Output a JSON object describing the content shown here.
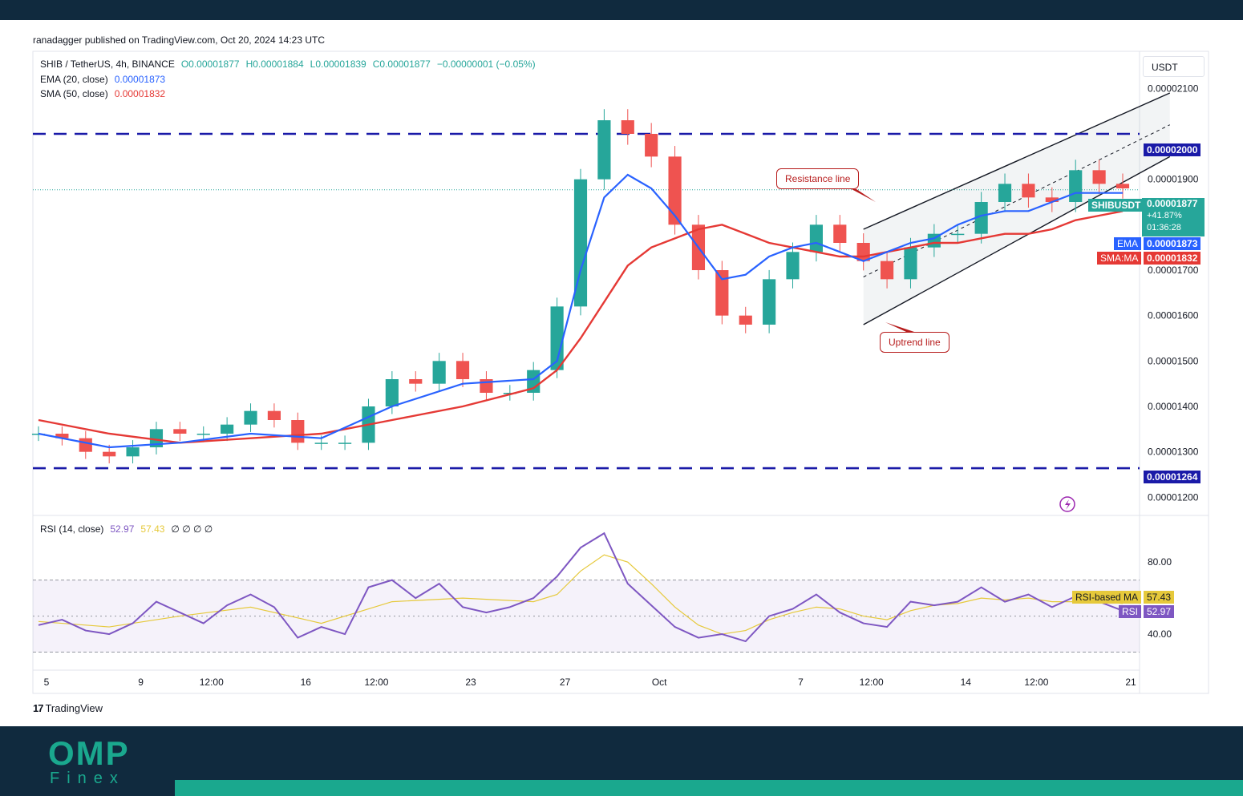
{
  "header": {
    "publisher": "ranadagger published on TradingView.com, Oct 20, 2024 14:23 UTC"
  },
  "legend": {
    "symbol": "SHIB / TetherUS, 4h, BINANCE",
    "open": "O0.00001877",
    "high": "H0.00001884",
    "low": "L0.00001839",
    "close": "C0.00001877",
    "change": "−0.00000001 (−0.05%)",
    "ema_label": "EMA (20, close)",
    "ema_value": "0.00001873",
    "sma_label": "SMA (50, close)",
    "sma_value": "0.00001832"
  },
  "rsi_legend": {
    "label": "RSI (14, close)",
    "rsi_value": "52.97",
    "ma_value": "57.43",
    "extras": "∅ ∅ ∅ ∅"
  },
  "currency_unit": "USDT",
  "price_tags": {
    "resistance": "0.00002000",
    "support": "0.00001264",
    "symbol": "SHIBUSDT",
    "last": "0.00001877",
    "change_pct": "+41.87%",
    "countdown": "01:36:28",
    "ema_tag": "EMA",
    "ema_value": "0.00001873",
    "sma_tag": "SMA:MA",
    "sma_value": "0.00001832",
    "rsi_ma_tag": "RSI-based MA",
    "rsi_ma_value": "57.43",
    "rsi_tag": "RSI",
    "rsi_value": "52.97"
  },
  "annotations": {
    "resistance_line": "Resistance line",
    "uptrend_line": "Uptrend line"
  },
  "footer": {
    "brand_mark": "17",
    "brand": "TradingView",
    "logo_main": "OMP",
    "logo_sub": "Finex"
  },
  "colors": {
    "up": "#26a69a",
    "down": "#ef5350",
    "ema": "#2962ff",
    "sma": "#e53935",
    "rsi": "#7e57c2",
    "rsi_ma": "#e6c93b",
    "levels": "#1a1aa8",
    "brand": "#1aa88e"
  },
  "chart_data": [
    {
      "type": "candlestick",
      "title": "SHIB / TetherUS, 4h, BINANCE",
      "ylim": [
        1.16e-05,
        2.18e-05
      ],
      "y_ticks": [
        "0.00002100",
        "0.00001900",
        "0.00001700",
        "0.00001600",
        "0.00001500",
        "0.00001400",
        "0.00001300",
        "0.00001200"
      ],
      "x_ticks": [
        "5",
        "9",
        "12:00",
        "16",
        "12:00",
        "23",
        "27",
        "Oct",
        "7",
        "12:00",
        "14",
        "12:00",
        "21"
      ],
      "x_positions": [
        0,
        4,
        7,
        11,
        14,
        18,
        22,
        26,
        32,
        35,
        39,
        42,
        46
      ],
      "horizontal_levels": [
        2e-05,
        1.264e-05
      ],
      "channel": {
        "upper": [
          [
            35,
            1.79e-05
          ],
          [
            48,
            2.09e-05
          ]
        ],
        "lower": [
          [
            35,
            1.58e-05
          ],
          [
            48,
            1.95e-05
          ]
        ]
      },
      "series": [
        {
          "name": "SHIBUSDT",
          "type": "candlestick",
          "points": [
            [
              0,
              1.34e-05
            ],
            [
              1,
              1.33e-05
            ],
            [
              2,
              1.3e-05
            ],
            [
              3,
              1.29e-05
            ],
            [
              4,
              1.31e-05
            ],
            [
              5,
              1.35e-05
            ],
            [
              6,
              1.34e-05
            ],
            [
              7,
              1.34e-05
            ],
            [
              8,
              1.36e-05
            ],
            [
              9,
              1.39e-05
            ],
            [
              10,
              1.37e-05
            ],
            [
              11,
              1.32e-05
            ],
            [
              12,
              1.32e-05
            ],
            [
              13,
              1.32e-05
            ],
            [
              14,
              1.4e-05
            ],
            [
              15,
              1.46e-05
            ],
            [
              16,
              1.45e-05
            ],
            [
              17,
              1.5e-05
            ],
            [
              18,
              1.46e-05
            ],
            [
              19,
              1.43e-05
            ],
            [
              20,
              1.43e-05
            ],
            [
              21,
              1.48e-05
            ],
            [
              22,
              1.62e-05
            ],
            [
              23,
              1.9e-05
            ],
            [
              24,
              2.03e-05
            ],
            [
              25,
              2e-05
            ],
            [
              26,
              1.95e-05
            ],
            [
              27,
              1.8e-05
            ],
            [
              28,
              1.7e-05
            ],
            [
              29,
              1.6e-05
            ],
            [
              30,
              1.58e-05
            ],
            [
              31,
              1.68e-05
            ],
            [
              32,
              1.74e-05
            ],
            [
              33,
              1.8e-05
            ],
            [
              34,
              1.76e-05
            ],
            [
              35,
              1.72e-05
            ],
            [
              36,
              1.68e-05
            ],
            [
              37,
              1.75e-05
            ],
            [
              38,
              1.78e-05
            ],
            [
              39,
              1.78e-05
            ],
            [
              40,
              1.85e-05
            ],
            [
              41,
              1.89e-05
            ],
            [
              42,
              1.86e-05
            ],
            [
              43,
              1.85e-05
            ],
            [
              44,
              1.92e-05
            ],
            [
              45,
              1.89e-05
            ],
            [
              46,
              1.88e-05
            ]
          ]
        },
        {
          "name": "EMA",
          "type": "line",
          "points": [
            [
              0,
              1.34e-05
            ],
            [
              3,
              1.31e-05
            ],
            [
              6,
              1.32e-05
            ],
            [
              9,
              1.34e-05
            ],
            [
              12,
              1.33e-05
            ],
            [
              15,
              1.4e-05
            ],
            [
              18,
              1.45e-05
            ],
            [
              21,
              1.46e-05
            ],
            [
              22,
              1.5e-05
            ],
            [
              23,
              1.7e-05
            ],
            [
              24,
              1.86e-05
            ],
            [
              25,
              1.91e-05
            ],
            [
              26,
              1.88e-05
            ],
            [
              27,
              1.82e-05
            ],
            [
              28,
              1.75e-05
            ],
            [
              29,
              1.68e-05
            ],
            [
              30,
              1.69e-05
            ],
            [
              31,
              1.73e-05
            ],
            [
              32,
              1.75e-05
            ],
            [
              33,
              1.76e-05
            ],
            [
              34,
              1.74e-05
            ],
            [
              35,
              1.72e-05
            ],
            [
              36,
              1.74e-05
            ],
            [
              37,
              1.76e-05
            ],
            [
              38,
              1.77e-05
            ],
            [
              39,
              1.8e-05
            ],
            [
              40,
              1.82e-05
            ],
            [
              41,
              1.83e-05
            ],
            [
              42,
              1.83e-05
            ],
            [
              43,
              1.85e-05
            ],
            [
              44,
              1.87e-05
            ],
            [
              45,
              1.87e-05
            ],
            [
              46,
              1.87e-05
            ]
          ]
        },
        {
          "name": "SMA:MA",
          "type": "line",
          "points": [
            [
              0,
              1.37e-05
            ],
            [
              3,
              1.34e-05
            ],
            [
              6,
              1.32e-05
            ],
            [
              9,
              1.33e-05
            ],
            [
              12,
              1.34e-05
            ],
            [
              15,
              1.37e-05
            ],
            [
              18,
              1.4e-05
            ],
            [
              21,
              1.44e-05
            ],
            [
              22,
              1.48e-05
            ],
            [
              23,
              1.55e-05
            ],
            [
              24,
              1.63e-05
            ],
            [
              25,
              1.71e-05
            ],
            [
              26,
              1.75e-05
            ],
            [
              27,
              1.77e-05
            ],
            [
              28,
              1.79e-05
            ],
            [
              29,
              1.8e-05
            ],
            [
              30,
              1.78e-05
            ],
            [
              31,
              1.76e-05
            ],
            [
              32,
              1.75e-05
            ],
            [
              33,
              1.74e-05
            ],
            [
              34,
              1.73e-05
            ],
            [
              35,
              1.73e-05
            ],
            [
              36,
              1.74e-05
            ],
            [
              37,
              1.75e-05
            ],
            [
              38,
              1.76e-05
            ],
            [
              39,
              1.76e-05
            ],
            [
              40,
              1.77e-05
            ],
            [
              41,
              1.78e-05
            ],
            [
              42,
              1.78e-05
            ],
            [
              43,
              1.79e-05
            ],
            [
              44,
              1.81e-05
            ],
            [
              45,
              1.82e-05
            ],
            [
              46,
              1.83e-05
            ]
          ]
        }
      ]
    },
    {
      "type": "line",
      "title": "RSI (14, close)",
      "ylim": [
        20,
        105
      ],
      "y_ticks": [
        "80.00",
        "40.00"
      ],
      "bands": [
        30,
        70
      ],
      "series": [
        {
          "name": "RSI",
          "points": [
            [
              0,
              45
            ],
            [
              1,
              48
            ],
            [
              2,
              42
            ],
            [
              3,
              40
            ],
            [
              4,
              46
            ],
            [
              5,
              58
            ],
            [
              6,
              52
            ],
            [
              7,
              46
            ],
            [
              8,
              56
            ],
            [
              9,
              62
            ],
            [
              10,
              55
            ],
            [
              11,
              38
            ],
            [
              12,
              44
            ],
            [
              13,
              40
            ],
            [
              14,
              66
            ],
            [
              15,
              70
            ],
            [
              16,
              60
            ],
            [
              17,
              68
            ],
            [
              18,
              55
            ],
            [
              19,
              52
            ],
            [
              20,
              55
            ],
            [
              21,
              60
            ],
            [
              22,
              72
            ],
            [
              23,
              88
            ],
            [
              24,
              96
            ],
            [
              25,
              68
            ],
            [
              26,
              56
            ],
            [
              27,
              44
            ],
            [
              28,
              38
            ],
            [
              29,
              40
            ],
            [
              30,
              36
            ],
            [
              31,
              50
            ],
            [
              32,
              54
            ],
            [
              33,
              62
            ],
            [
              34,
              52
            ],
            [
              35,
              46
            ],
            [
              36,
              44
            ],
            [
              37,
              58
            ],
            [
              38,
              56
            ],
            [
              39,
              58
            ],
            [
              40,
              66
            ],
            [
              41,
              58
            ],
            [
              42,
              62
            ],
            [
              43,
              55
            ],
            [
              44,
              61
            ],
            [
              45,
              58
            ],
            [
              46,
              53
            ]
          ]
        },
        {
          "name": "RSI-based MA",
          "points": [
            [
              0,
              47
            ],
            [
              3,
              44
            ],
            [
              6,
              50
            ],
            [
              9,
              55
            ],
            [
              12,
              46
            ],
            [
              15,
              58
            ],
            [
              18,
              60
            ],
            [
              21,
              58
            ],
            [
              22,
              62
            ],
            [
              23,
              75
            ],
            [
              24,
              84
            ],
            [
              25,
              80
            ],
            [
              26,
              68
            ],
            [
              27,
              55
            ],
            [
              28,
              45
            ],
            [
              29,
              40
            ],
            [
              30,
              42
            ],
            [
              31,
              48
            ],
            [
              32,
              52
            ],
            [
              33,
              55
            ],
            [
              34,
              54
            ],
            [
              35,
              50
            ],
            [
              36,
              48
            ],
            [
              37,
              53
            ],
            [
              38,
              56
            ],
            [
              39,
              57
            ],
            [
              40,
              60
            ],
            [
              41,
              59
            ],
            [
              42,
              60
            ],
            [
              43,
              58
            ],
            [
              44,
              58
            ],
            [
              45,
              58
            ],
            [
              46,
              57
            ]
          ]
        }
      ]
    }
  ]
}
